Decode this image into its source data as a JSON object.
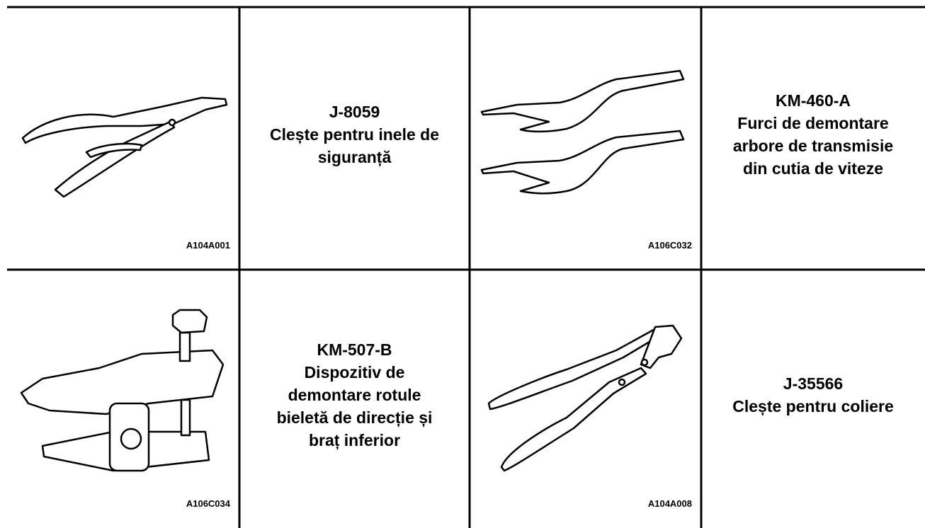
{
  "rows": [
    {
      "cells": [
        {
          "figure_code": "A104A001"
        },
        {
          "lines": [
            "J-8059",
            "Clește pentru inele de",
            "siguranță"
          ]
        },
        {
          "figure_code": "A106C032"
        },
        {
          "lines": [
            "KM-460-A",
            "Furci de demontare",
            "arbore de transmisie",
            "din cutia de viteze"
          ]
        }
      ]
    },
    {
      "cells": [
        {
          "figure_code": "A106C034"
        },
        {
          "lines": [
            "KM-507-B",
            "Dispozitiv de",
            "demontare rotule",
            "bieletă de direcție și",
            "braț inferior"
          ]
        },
        {
          "figure_code": "A104A008"
        },
        {
          "lines": [
            "J-35566",
            "Clește pentru coliere"
          ]
        }
      ]
    }
  ]
}
